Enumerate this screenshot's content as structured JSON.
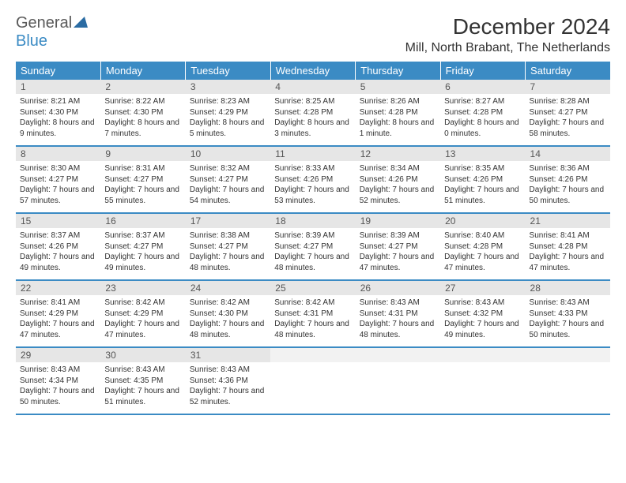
{
  "logo": {
    "text1": "General",
    "text2": "Blue"
  },
  "title": "December 2024",
  "location": "Mill, North Brabant, The Netherlands",
  "colors": {
    "header_bg": "#3b8bc4",
    "header_text": "#ffffff",
    "daynum_bg": "#e6e6e6",
    "border": "#3b8bc4"
  },
  "day_names": [
    "Sunday",
    "Monday",
    "Tuesday",
    "Wednesday",
    "Thursday",
    "Friday",
    "Saturday"
  ],
  "weeks": [
    [
      {
        "n": "1",
        "sr": "Sunrise: 8:21 AM",
        "ss": "Sunset: 4:30 PM",
        "dl": "Daylight: 8 hours and 9 minutes."
      },
      {
        "n": "2",
        "sr": "Sunrise: 8:22 AM",
        "ss": "Sunset: 4:30 PM",
        "dl": "Daylight: 8 hours and 7 minutes."
      },
      {
        "n": "3",
        "sr": "Sunrise: 8:23 AM",
        "ss": "Sunset: 4:29 PM",
        "dl": "Daylight: 8 hours and 5 minutes."
      },
      {
        "n": "4",
        "sr": "Sunrise: 8:25 AM",
        "ss": "Sunset: 4:28 PM",
        "dl": "Daylight: 8 hours and 3 minutes."
      },
      {
        "n": "5",
        "sr": "Sunrise: 8:26 AM",
        "ss": "Sunset: 4:28 PM",
        "dl": "Daylight: 8 hours and 1 minute."
      },
      {
        "n": "6",
        "sr": "Sunrise: 8:27 AM",
        "ss": "Sunset: 4:28 PM",
        "dl": "Daylight: 8 hours and 0 minutes."
      },
      {
        "n": "7",
        "sr": "Sunrise: 8:28 AM",
        "ss": "Sunset: 4:27 PM",
        "dl": "Daylight: 7 hours and 58 minutes."
      }
    ],
    [
      {
        "n": "8",
        "sr": "Sunrise: 8:30 AM",
        "ss": "Sunset: 4:27 PM",
        "dl": "Daylight: 7 hours and 57 minutes."
      },
      {
        "n": "9",
        "sr": "Sunrise: 8:31 AM",
        "ss": "Sunset: 4:27 PM",
        "dl": "Daylight: 7 hours and 55 minutes."
      },
      {
        "n": "10",
        "sr": "Sunrise: 8:32 AM",
        "ss": "Sunset: 4:27 PM",
        "dl": "Daylight: 7 hours and 54 minutes."
      },
      {
        "n": "11",
        "sr": "Sunrise: 8:33 AM",
        "ss": "Sunset: 4:26 PM",
        "dl": "Daylight: 7 hours and 53 minutes."
      },
      {
        "n": "12",
        "sr": "Sunrise: 8:34 AM",
        "ss": "Sunset: 4:26 PM",
        "dl": "Daylight: 7 hours and 52 minutes."
      },
      {
        "n": "13",
        "sr": "Sunrise: 8:35 AM",
        "ss": "Sunset: 4:26 PM",
        "dl": "Daylight: 7 hours and 51 minutes."
      },
      {
        "n": "14",
        "sr": "Sunrise: 8:36 AM",
        "ss": "Sunset: 4:26 PM",
        "dl": "Daylight: 7 hours and 50 minutes."
      }
    ],
    [
      {
        "n": "15",
        "sr": "Sunrise: 8:37 AM",
        "ss": "Sunset: 4:26 PM",
        "dl": "Daylight: 7 hours and 49 minutes."
      },
      {
        "n": "16",
        "sr": "Sunrise: 8:37 AM",
        "ss": "Sunset: 4:27 PM",
        "dl": "Daylight: 7 hours and 49 minutes."
      },
      {
        "n": "17",
        "sr": "Sunrise: 8:38 AM",
        "ss": "Sunset: 4:27 PM",
        "dl": "Daylight: 7 hours and 48 minutes."
      },
      {
        "n": "18",
        "sr": "Sunrise: 8:39 AM",
        "ss": "Sunset: 4:27 PM",
        "dl": "Daylight: 7 hours and 48 minutes."
      },
      {
        "n": "19",
        "sr": "Sunrise: 8:39 AM",
        "ss": "Sunset: 4:27 PM",
        "dl": "Daylight: 7 hours and 47 minutes."
      },
      {
        "n": "20",
        "sr": "Sunrise: 8:40 AM",
        "ss": "Sunset: 4:28 PM",
        "dl": "Daylight: 7 hours and 47 minutes."
      },
      {
        "n": "21",
        "sr": "Sunrise: 8:41 AM",
        "ss": "Sunset: 4:28 PM",
        "dl": "Daylight: 7 hours and 47 minutes."
      }
    ],
    [
      {
        "n": "22",
        "sr": "Sunrise: 8:41 AM",
        "ss": "Sunset: 4:29 PM",
        "dl": "Daylight: 7 hours and 47 minutes."
      },
      {
        "n": "23",
        "sr": "Sunrise: 8:42 AM",
        "ss": "Sunset: 4:29 PM",
        "dl": "Daylight: 7 hours and 47 minutes."
      },
      {
        "n": "24",
        "sr": "Sunrise: 8:42 AM",
        "ss": "Sunset: 4:30 PM",
        "dl": "Daylight: 7 hours and 48 minutes."
      },
      {
        "n": "25",
        "sr": "Sunrise: 8:42 AM",
        "ss": "Sunset: 4:31 PM",
        "dl": "Daylight: 7 hours and 48 minutes."
      },
      {
        "n": "26",
        "sr": "Sunrise: 8:43 AM",
        "ss": "Sunset: 4:31 PM",
        "dl": "Daylight: 7 hours and 48 minutes."
      },
      {
        "n": "27",
        "sr": "Sunrise: 8:43 AM",
        "ss": "Sunset: 4:32 PM",
        "dl": "Daylight: 7 hours and 49 minutes."
      },
      {
        "n": "28",
        "sr": "Sunrise: 8:43 AM",
        "ss": "Sunset: 4:33 PM",
        "dl": "Daylight: 7 hours and 50 minutes."
      }
    ],
    [
      {
        "n": "29",
        "sr": "Sunrise: 8:43 AM",
        "ss": "Sunset: 4:34 PM",
        "dl": "Daylight: 7 hours and 50 minutes."
      },
      {
        "n": "30",
        "sr": "Sunrise: 8:43 AM",
        "ss": "Sunset: 4:35 PM",
        "dl": "Daylight: 7 hours and 51 minutes."
      },
      {
        "n": "31",
        "sr": "Sunrise: 8:43 AM",
        "ss": "Sunset: 4:36 PM",
        "dl": "Daylight: 7 hours and 52 minutes."
      },
      {
        "n": "",
        "sr": "",
        "ss": "",
        "dl": ""
      },
      {
        "n": "",
        "sr": "",
        "ss": "",
        "dl": ""
      },
      {
        "n": "",
        "sr": "",
        "ss": "",
        "dl": ""
      },
      {
        "n": "",
        "sr": "",
        "ss": "",
        "dl": ""
      }
    ]
  ]
}
